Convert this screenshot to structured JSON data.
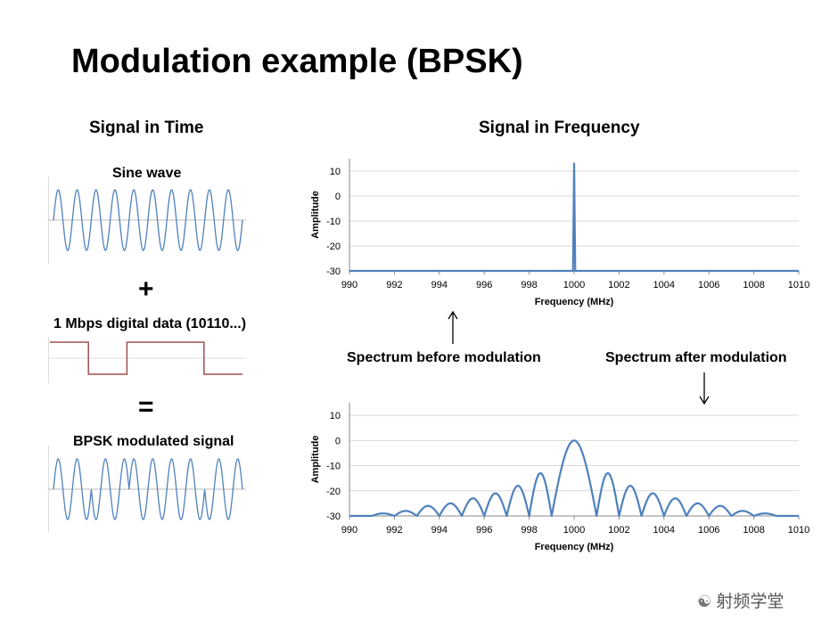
{
  "title": "Modulation example (BPSK)",
  "left": {
    "heading": "Signal in Time",
    "sine_label": "Sine wave",
    "plus": "+",
    "data_label": "1 Mbps digital data (10110...)",
    "equals": "=",
    "bpsk_label": "BPSK modulated signal",
    "bits": [
      1,
      0,
      1,
      1,
      0
    ],
    "carrier_cycles_per_bit": 2
  },
  "right": {
    "heading": "Signal in Frequency",
    "label_before": "Spectrum before modulation",
    "label_after": "Spectrum after modulation"
  },
  "chart_data": [
    {
      "type": "line",
      "name": "before",
      "xlabel": "Frequency (MHz)",
      "ylabel": "Amplitude",
      "xlim": [
        990,
        1010
      ],
      "ylim": [
        -30,
        15
      ],
      "xticks": [
        990,
        992,
        994,
        996,
        998,
        1000,
        1002,
        1004,
        1006,
        1008,
        1010
      ],
      "yticks": [
        10,
        0,
        -10,
        -20,
        -30
      ],
      "grid": true,
      "color": "#4f81bd",
      "x": [
        990,
        999.9,
        999.95,
        1000,
        1000.05,
        1000.1,
        1010
      ],
      "y": [
        -30,
        -30,
        -30,
        13,
        -30,
        -30,
        -30
      ]
    },
    {
      "type": "line",
      "name": "after",
      "xlabel": "Frequency (MHz)",
      "ylabel": "Amplitude",
      "xlim": [
        990,
        1010
      ],
      "ylim": [
        -30,
        15
      ],
      "xticks": [
        990,
        992,
        994,
        996,
        998,
        1000,
        1002,
        1004,
        1006,
        1008,
        1010
      ],
      "yticks": [
        10,
        0,
        -10,
        -20,
        -30
      ],
      "grid": true,
      "color": "#4f81bd",
      "lobes": [
        {
          "from": 990.0,
          "to": 991.0,
          "peak": -31
        },
        {
          "from": 991.0,
          "to": 992.0,
          "peak": -29
        },
        {
          "from": 992.0,
          "to": 993.0,
          "peak": -28
        },
        {
          "from": 993.0,
          "to": 994.0,
          "peak": -26
        },
        {
          "from": 994.0,
          "to": 995.0,
          "peak": -25
        },
        {
          "from": 995.0,
          "to": 996.0,
          "peak": -23
        },
        {
          "from": 996.0,
          "to": 997.0,
          "peak": -21
        },
        {
          "from": 997.0,
          "to": 998.0,
          "peak": -18
        },
        {
          "from": 998.0,
          "to": 999.0,
          "peak": -13
        },
        {
          "from": 999.0,
          "to": 1001.0,
          "peak": 0
        },
        {
          "from": 1001.0,
          "to": 1002.0,
          "peak": -13
        },
        {
          "from": 1002.0,
          "to": 1003.0,
          "peak": -18
        },
        {
          "from": 1003.0,
          "to": 1004.0,
          "peak": -21
        },
        {
          "from": 1004.0,
          "to": 1005.0,
          "peak": -23
        },
        {
          "from": 1005.0,
          "to": 1006.0,
          "peak": -25
        },
        {
          "from": 1006.0,
          "to": 1007.0,
          "peak": -26
        },
        {
          "from": 1007.0,
          "to": 1008.0,
          "peak": -28
        },
        {
          "from": 1008.0,
          "to": 1009.0,
          "peak": -29
        },
        {
          "from": 1009.0,
          "to": 1010.0,
          "peak": -31
        }
      ]
    }
  ],
  "watermark": "射频学堂",
  "colors": {
    "wave": "#4f81bd",
    "square": "#a05050",
    "grid": "#d9d9d9",
    "axis": "#888888"
  }
}
